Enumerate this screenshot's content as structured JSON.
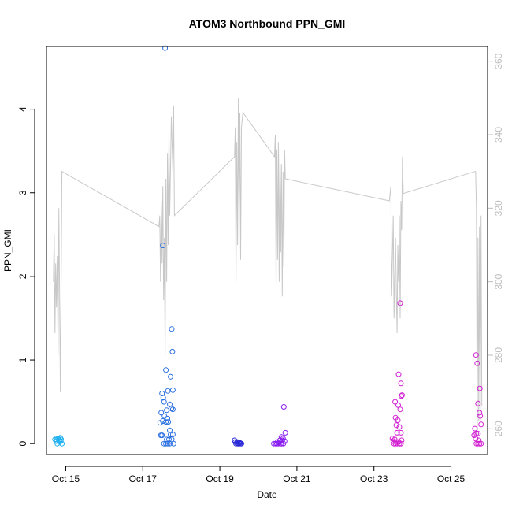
{
  "chart_data": {
    "type": "scatter",
    "title": "ATOM3 Northbound PPN_GMI",
    "xlabel": "Date",
    "ylabel": "PPN_GMI",
    "x_ticks": [
      {
        "label": "Oct 15",
        "day": 15
      },
      {
        "label": "Oct 17",
        "day": 17
      },
      {
        "label": "Oct 19",
        "day": 19
      },
      {
        "label": "Oct 21",
        "day": 21
      },
      {
        "label": "Oct 23",
        "day": 23
      },
      {
        "label": "Oct 25",
        "day": 25
      }
    ],
    "xlim_day": [
      14.5,
      25.95
    ],
    "ylim": [
      -0.13,
      4.75
    ],
    "y_ticks": [
      0,
      1,
      2,
      3,
      4
    ],
    "right_axis": {
      "ticks": [
        260,
        280,
        300,
        320,
        340,
        360
      ],
      "ylim": [
        253,
        364
      ],
      "color": "#bebebe"
    },
    "grid": false,
    "series": [
      {
        "color": "#1fb0f0",
        "points": [
          [
            14.72,
            0.05
          ],
          [
            14.75,
            0.03
          ],
          [
            14.78,
            0.0
          ],
          [
            14.8,
            0.06
          ],
          [
            14.82,
            0.04
          ],
          [
            14.84,
            0.02
          ],
          [
            14.86,
            0.07
          ],
          [
            14.88,
            0.05
          ],
          [
            14.9,
            0.0
          ],
          [
            14.76,
            0.05
          ],
          [
            14.83,
            0.05
          ],
          [
            14.87,
            0.03
          ]
        ]
      },
      {
        "color": "#2a6fe0",
        "points": [
          [
            17.58,
            4.73
          ],
          [
            17.52,
            2.37
          ],
          [
            17.75,
            1.37
          ],
          [
            17.77,
            1.1
          ],
          [
            17.6,
            0.88
          ],
          [
            17.72,
            0.8
          ],
          [
            17.65,
            0.63
          ],
          [
            17.78,
            0.64
          ],
          [
            17.5,
            0.6
          ],
          [
            17.53,
            0.55
          ],
          [
            17.55,
            0.5
          ],
          [
            17.7,
            0.47
          ],
          [
            17.62,
            0.4
          ],
          [
            17.74,
            0.42
          ],
          [
            17.78,
            0.41
          ],
          [
            17.48,
            0.37
          ],
          [
            17.56,
            0.33
          ],
          [
            17.64,
            0.3
          ],
          [
            17.52,
            0.27
          ],
          [
            17.6,
            0.26
          ],
          [
            17.66,
            0.26
          ],
          [
            17.45,
            0.25
          ],
          [
            17.7,
            0.16
          ],
          [
            17.72,
            0.11
          ],
          [
            17.78,
            0.11
          ],
          [
            17.5,
            0.1
          ],
          [
            17.47,
            0.1
          ],
          [
            17.62,
            0.05
          ],
          [
            17.68,
            0.05
          ],
          [
            17.75,
            0.05
          ],
          [
            17.55,
            0.0
          ],
          [
            17.6,
            0.0
          ],
          [
            17.65,
            0.0
          ],
          [
            17.7,
            0.0
          ],
          [
            17.8,
            0.0
          ]
        ]
      },
      {
        "color": "#2a2ad8",
        "points": [
          [
            19.38,
            0.04
          ],
          [
            19.42,
            0.0
          ],
          [
            19.45,
            0.02
          ],
          [
            19.48,
            0.0
          ],
          [
            19.5,
            0.01
          ],
          [
            19.53,
            0.0
          ],
          [
            19.56,
            0.0
          ],
          [
            19.4,
            0.02
          ],
          [
            19.46,
            0.0
          ],
          [
            19.52,
            0.01
          ]
        ]
      },
      {
        "color": "#8a1ef0",
        "points": [
          [
            20.66,
            0.44
          ],
          [
            20.7,
            0.13
          ],
          [
            20.6,
            0.08
          ],
          [
            20.64,
            0.06
          ],
          [
            20.56,
            0.04
          ],
          [
            20.62,
            0.04
          ],
          [
            20.68,
            0.03
          ],
          [
            20.5,
            0.02
          ],
          [
            20.54,
            0.01
          ],
          [
            20.4,
            0.0
          ],
          [
            20.45,
            0.0
          ],
          [
            20.48,
            0.0
          ],
          [
            20.52,
            0.0
          ],
          [
            20.58,
            0.0
          ],
          [
            20.61,
            0.0
          ],
          [
            20.65,
            0.0
          ]
        ]
      },
      {
        "color": "#d21ed2",
        "points": [
          [
            23.68,
            1.68
          ],
          [
            23.64,
            0.83
          ],
          [
            23.7,
            0.72
          ],
          [
            23.73,
            0.58
          ],
          [
            23.71,
            0.57
          ],
          [
            23.55,
            0.5
          ],
          [
            23.63,
            0.46
          ],
          [
            23.68,
            0.41
          ],
          [
            23.56,
            0.31
          ],
          [
            23.62,
            0.28
          ],
          [
            23.58,
            0.22
          ],
          [
            23.66,
            0.2
          ],
          [
            23.6,
            0.13
          ],
          [
            23.7,
            0.13
          ],
          [
            23.48,
            0.06
          ],
          [
            23.54,
            0.05
          ],
          [
            23.72,
            0.04
          ],
          [
            23.5,
            0.03
          ],
          [
            23.58,
            0.02
          ],
          [
            23.64,
            0.02
          ],
          [
            23.52,
            0.0
          ],
          [
            23.56,
            0.0
          ],
          [
            23.6,
            0.0
          ],
          [
            23.66,
            0.0
          ],
          [
            23.7,
            0.0
          ],
          [
            25.65,
            1.06
          ],
          [
            25.68,
            0.96
          ],
          [
            25.75,
            0.66
          ],
          [
            25.7,
            0.48
          ],
          [
            25.74,
            0.37
          ],
          [
            25.76,
            0.33
          ],
          [
            25.78,
            0.23
          ],
          [
            25.62,
            0.18
          ],
          [
            25.66,
            0.12
          ],
          [
            25.7,
            0.12
          ],
          [
            25.6,
            0.1
          ],
          [
            25.64,
            0.06
          ],
          [
            25.72,
            0.04
          ],
          [
            25.66,
            0.0
          ],
          [
            25.7,
            0.0
          ],
          [
            25.74,
            0.0
          ],
          [
            25.78,
            0.0
          ]
        ]
      }
    ],
    "background_line": {
      "color": "#c8c8c8",
      "points": [
        [
          14.68,
          300
        ],
        [
          14.7,
          313
        ],
        [
          14.72,
          286
        ],
        [
          14.74,
          305
        ],
        [
          14.76,
          293
        ],
        [
          14.78,
          307
        ],
        [
          14.8,
          280
        ],
        [
          14.82,
          320
        ],
        [
          14.84,
          298
        ],
        [
          14.86,
          270
        ],
        [
          14.9,
          330
        ],
        [
          17.42,
          315
        ],
        [
          17.44,
          318
        ],
        [
          17.46,
          300
        ],
        [
          17.48,
          322
        ],
        [
          17.5,
          305
        ],
        [
          17.52,
          326
        ],
        [
          17.54,
          295
        ],
        [
          17.56,
          312
        ],
        [
          17.58,
          280
        ],
        [
          17.6,
          328
        ],
        [
          17.62,
          300
        ],
        [
          17.64,
          335
        ],
        [
          17.66,
          310
        ],
        [
          17.68,
          340
        ],
        [
          17.7,
          318
        ],
        [
          17.74,
          345
        ],
        [
          17.78,
          330
        ],
        [
          17.8,
          348
        ],
        [
          17.82,
          318
        ],
        [
          19.38,
          334
        ],
        [
          19.4,
          342
        ],
        [
          19.42,
          300
        ],
        [
          19.44,
          338
        ],
        [
          19.46,
          310
        ],
        [
          19.48,
          350
        ],
        [
          19.5,
          320
        ],
        [
          19.52,
          346
        ],
        [
          19.54,
          306
        ],
        [
          19.56,
          342
        ],
        [
          19.6,
          346
        ],
        [
          20.42,
          334
        ],
        [
          20.44,
          340
        ],
        [
          20.46,
          298
        ],
        [
          20.48,
          336
        ],
        [
          20.5,
          306
        ],
        [
          20.52,
          338
        ],
        [
          20.54,
          300
        ],
        [
          20.56,
          336
        ],
        [
          20.58,
          308
        ],
        [
          20.6,
          332
        ],
        [
          20.62,
          296
        ],
        [
          20.64,
          330
        ],
        [
          20.66,
          304
        ],
        [
          20.68,
          336
        ],
        [
          20.7,
          328
        ],
        [
          23.4,
          322
        ],
        [
          23.44,
          326
        ],
        [
          23.46,
          296
        ],
        [
          23.5,
          318
        ],
        [
          23.52,
          290
        ],
        [
          23.56,
          312
        ],
        [
          23.58,
          298
        ],
        [
          23.6,
          286
        ],
        [
          23.62,
          310
        ],
        [
          23.64,
          300
        ],
        [
          23.66,
          318
        ],
        [
          23.68,
          290
        ],
        [
          23.7,
          322
        ],
        [
          23.72,
          314
        ],
        [
          23.74,
          334
        ],
        [
          23.76,
          324
        ],
        [
          25.62,
          330
        ],
        [
          25.64,
          330
        ],
        [
          25.66,
          320
        ],
        [
          25.68,
          256
        ],
        [
          25.7,
          312
        ],
        [
          25.72,
          262
        ],
        [
          25.74,
          315
        ],
        [
          25.76,
          262
        ],
        [
          25.78,
          318
        ],
        [
          25.8,
          266
        ]
      ]
    }
  }
}
